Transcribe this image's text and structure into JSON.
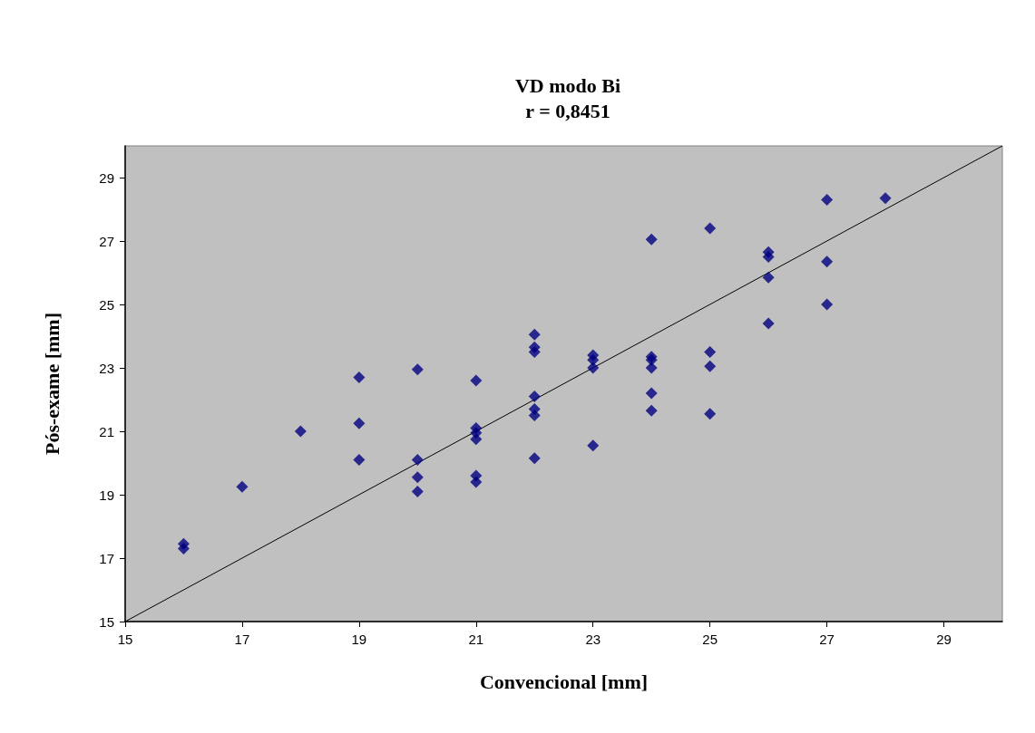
{
  "chart_data": {
    "type": "scatter",
    "title": "VD modo Bi",
    "subtitle": "r = 0,8451",
    "xlabel": "Convencional [mm]",
    "ylabel": "Pós-exame [mm]",
    "xlim": [
      15,
      30
    ],
    "xticks": [
      15,
      17,
      19,
      21,
      23,
      25,
      27,
      29
    ],
    "ylim": [
      15,
      30
    ],
    "yticks": [
      15,
      17,
      19,
      21,
      23,
      25,
      27,
      29
    ],
    "grid": false,
    "series": [
      {
        "color": "#000080",
        "marker": "diamond",
        "x": [
          16,
          16,
          17,
          18,
          19,
          19,
          19,
          20,
          20,
          20,
          20,
          21,
          21,
          21,
          21,
          21,
          21,
          22,
          22,
          22,
          22,
          22,
          22,
          22,
          23,
          23,
          23,
          23,
          24,
          24,
          24,
          24,
          24,
          24,
          25,
          25,
          25,
          25,
          26,
          26,
          26,
          26,
          27,
          27,
          27,
          28
        ],
        "values": [
          17.45,
          17.3,
          19.25,
          21.0,
          22.7,
          21.25,
          20.1,
          22.95,
          20.1,
          19.55,
          19.1,
          22.6,
          21.1,
          20.95,
          20.75,
          19.6,
          19.4,
          24.05,
          23.65,
          23.5,
          22.1,
          21.7,
          21.5,
          20.15,
          23.4,
          23.25,
          23.0,
          20.55,
          27.05,
          23.35,
          23.25,
          23.0,
          22.2,
          21.65,
          27.4,
          23.5,
          23.05,
          21.55,
          26.65,
          26.5,
          25.85,
          24.4,
          28.3,
          26.35,
          25.0,
          28.35
        ]
      },
      {
        "type": "line",
        "color": "#000000",
        "marker": "none",
        "x": [
          15,
          30
        ],
        "values": [
          15,
          30
        ]
      }
    ]
  }
}
